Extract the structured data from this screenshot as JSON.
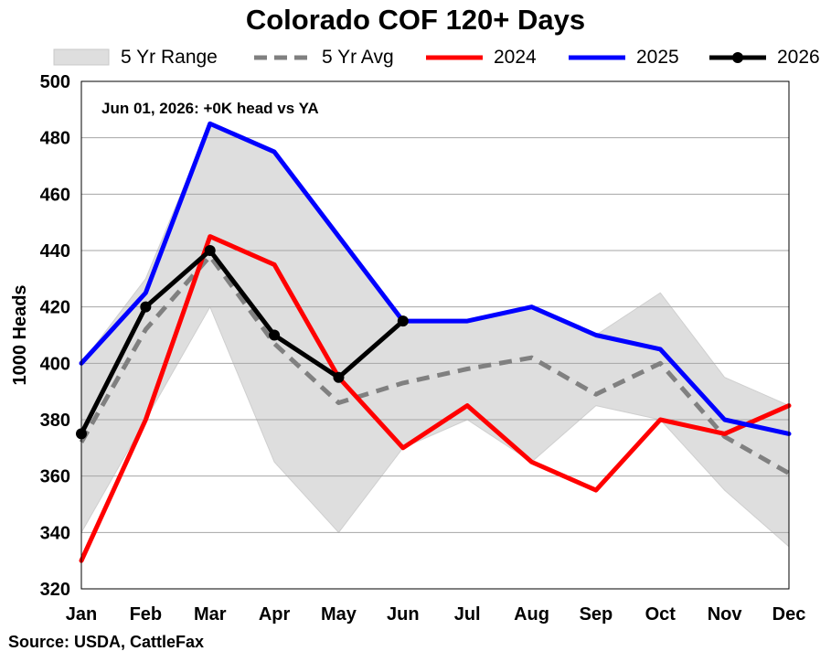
{
  "chart_data": {
    "type": "line",
    "title": "Colorado COF 120+ Days",
    "ylabel": "1000 Heads",
    "xlabel": "",
    "ylim": [
      320,
      500
    ],
    "yticks": [
      320,
      340,
      360,
      380,
      400,
      420,
      440,
      460,
      480,
      500
    ],
    "categories": [
      "Jan",
      "Feb",
      "Mar",
      "Apr",
      "May",
      "Jun",
      "Jul",
      "Aug",
      "Sep",
      "Oct",
      "Nov",
      "Dec"
    ],
    "grid": "horizontal",
    "legend_position": "top",
    "annotation": "Jun 01, 2026: +0K head vs YA",
    "range": {
      "name": "5 Yr Range",
      "color": "#dedede",
      "low": [
        340,
        380,
        420,
        365,
        340,
        370,
        380,
        365,
        385,
        380,
        355,
        335
      ],
      "high": [
        400,
        430,
        485,
        475,
        445,
        415,
        415,
        420,
        410,
        425,
        395,
        385
      ]
    },
    "series": [
      {
        "name": "5 Yr Avg",
        "color": "#808080",
        "style": "dashed",
        "markers": false,
        "values": [
          372,
          412,
          438,
          407,
          386,
          393,
          398,
          402,
          389,
          400,
          374,
          361
        ]
      },
      {
        "name": "2024",
        "color": "#ff0000",
        "style": "solid",
        "markers": false,
        "values": [
          330,
          380,
          445,
          435,
          395,
          370,
          385,
          365,
          355,
          380,
          375,
          385
        ]
      },
      {
        "name": "2025",
        "color": "#0000ff",
        "style": "solid",
        "markers": false,
        "values": [
          400,
          425,
          485,
          475,
          445,
          415,
          415,
          420,
          410,
          405,
          380,
          375
        ]
      },
      {
        "name": "2026",
        "color": "#000000",
        "style": "solid",
        "markers": true,
        "values": [
          375,
          420,
          440,
          410,
          395,
          415,
          null,
          null,
          null,
          null,
          null,
          null
        ]
      }
    ]
  },
  "source": "Source: USDA, CattleFax"
}
